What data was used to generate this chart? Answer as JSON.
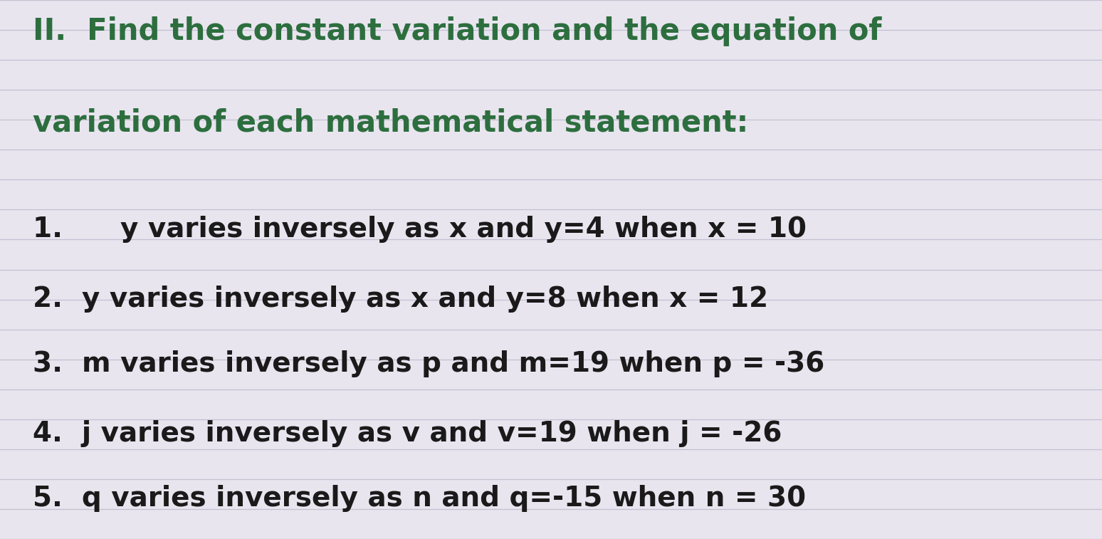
{
  "background_color": "#e8e5ef",
  "line_color": "#c5bfd0",
  "title_color": "#2d6e3e",
  "item_color": "#1a1a1a",
  "title_lines": [
    "II.  Find the constant variation and the equation of",
    "variation of each mathematical statement:"
  ],
  "items": [
    "1.      y varies inversely as x and y=4 when x = 10",
    "2.  y varies inversely as x and y=8 when x = 12",
    "3.  m varies inversely as p and m=19 when p = -36",
    "4.  j varies inversely as v and v=19 when j = -26",
    "5.  q varies inversely as n and q=-15 when n = 30"
  ],
  "figsize": [
    15.48,
    7.57
  ],
  "dpi": 100,
  "num_lines": 18,
  "title_fontsize": 30,
  "item_fontsize": 28
}
